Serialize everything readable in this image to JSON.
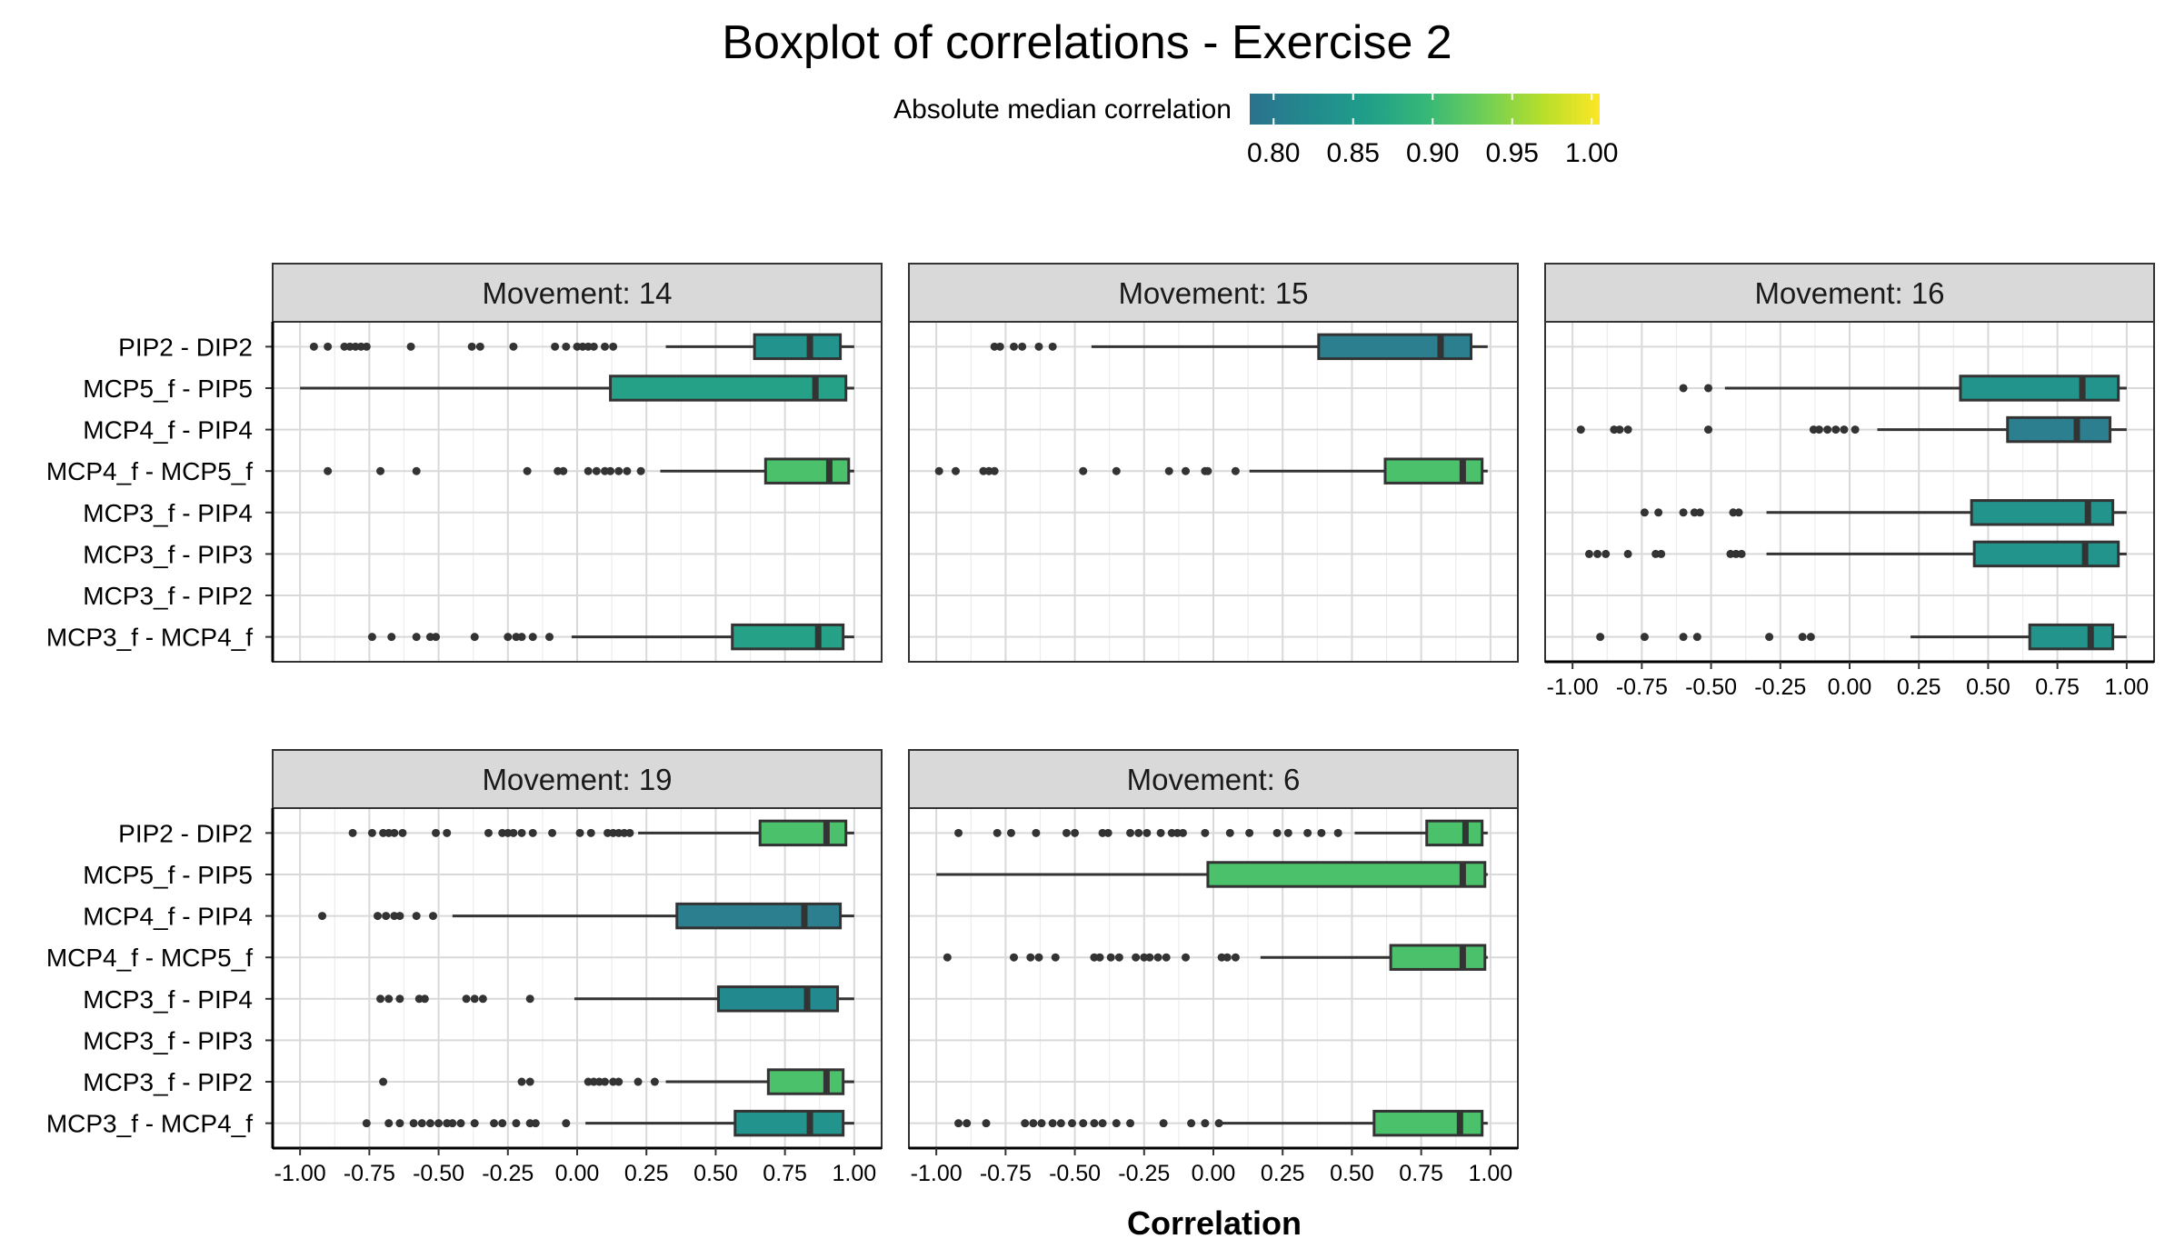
{
  "chart_data": {
    "type": "boxplot",
    "title": "Boxplot of correlations - Exercise 2",
    "xlabel": "Correlation",
    "ylabel": "",
    "xlim": [
      -1.0,
      1.0
    ],
    "x_ticks": [
      "-1.00",
      "-0.75",
      "-0.50",
      "-0.25",
      "0.00",
      "0.25",
      "0.50",
      "0.75",
      "1.00"
    ],
    "x_tick_values": [
      -1.0,
      -0.75,
      -0.5,
      -0.25,
      0.0,
      0.25,
      0.5,
      0.75,
      1.0
    ],
    "categories": [
      "PIP2 - DIP2",
      "MCP5_f - PIP5",
      "MCP4_f - PIP4",
      "MCP4_f - MCP5_f",
      "MCP3_f - PIP4",
      "MCP3_f - PIP3",
      "MCP3_f - PIP2",
      "MCP3_f - MCP4_f"
    ],
    "legend": {
      "title": "Absolute median correlation",
      "ticks": [
        "0.80",
        "0.85",
        "0.90",
        "0.95",
        "1.00"
      ],
      "tick_values": [
        0.8,
        0.85,
        0.9,
        0.95,
        1.0
      ],
      "range": [
        0.785,
        1.005
      ],
      "colors": [
        "#2b718e",
        "#23898e",
        "#1f9e89",
        "#35b779",
        "#6ece58",
        "#b5de2b",
        "#fde725"
      ]
    },
    "panels": [
      {
        "label": "Movement: 14",
        "boxes": [
          {
            "category": "PIP2 - DIP2",
            "whisker_low": 0.32,
            "q1": 0.64,
            "median": 0.84,
            "q3": 0.95,
            "whisker_high": 1.0,
            "color": "#22938d",
            "outliers": [
              -0.95,
              -0.9,
              -0.84,
              -0.82,
              -0.8,
              -0.78,
              -0.76,
              -0.6,
              -0.38,
              -0.35,
              -0.23,
              -0.08,
              -0.04,
              0.0,
              0.02,
              0.04,
              0.06,
              0.1,
              0.13
            ]
          },
          {
            "category": "MCP5_f - PIP5",
            "whisker_low": -1.0,
            "q1": 0.12,
            "median": 0.86,
            "q3": 0.97,
            "whisker_high": 1.0,
            "color": "#25a188",
            "outliers": []
          },
          {
            "category": "MCP4_f - MCP5_f",
            "whisker_low": 0.3,
            "q1": 0.68,
            "median": 0.91,
            "q3": 0.98,
            "whisker_high": 1.0,
            "color": "#4bc16b",
            "outliers": [
              -0.9,
              -0.71,
              -0.58,
              -0.18,
              -0.07,
              -0.05,
              0.04,
              0.07,
              0.1,
              0.12,
              0.15,
              0.18,
              0.23
            ]
          },
          {
            "category": "MCP3_f - MCP4_f",
            "whisker_low": -0.02,
            "q1": 0.56,
            "median": 0.87,
            "q3": 0.96,
            "whisker_high": 1.0,
            "color": "#25a188",
            "outliers": [
              -0.74,
              -0.67,
              -0.58,
              -0.53,
              -0.51,
              -0.37,
              -0.25,
              -0.22,
              -0.2,
              -0.16,
              -0.1
            ]
          }
        ]
      },
      {
        "label": "Movement: 15",
        "boxes": [
          {
            "category": "PIP2 - DIP2",
            "whisker_low": -0.44,
            "q1": 0.38,
            "median": 0.82,
            "q3": 0.93,
            "whisker_high": 0.99,
            "color": "#2b7f8e",
            "outliers": [
              -0.79,
              -0.77,
              -0.72,
              -0.69,
              -0.63,
              -0.58
            ]
          },
          {
            "category": "MCP4_f - MCP5_f",
            "whisker_low": 0.13,
            "q1": 0.62,
            "median": 0.9,
            "q3": 0.97,
            "whisker_high": 0.99,
            "color": "#4bc16b",
            "outliers": [
              -0.99,
              -0.93,
              -0.83,
              -0.81,
              -0.79,
              -0.47,
              -0.35,
              -0.16,
              -0.1,
              -0.03,
              -0.02,
              0.08
            ]
          }
        ]
      },
      {
        "label": "Movement: 16",
        "boxes": [
          {
            "category": "MCP5_f - PIP5",
            "whisker_low": -0.45,
            "q1": 0.4,
            "median": 0.84,
            "q3": 0.97,
            "whisker_high": 1.0,
            "color": "#22948c",
            "outliers": [
              -0.6,
              -0.51
            ]
          },
          {
            "category": "MCP4_f - PIP4",
            "whisker_low": 0.1,
            "q1": 0.57,
            "median": 0.82,
            "q3": 0.94,
            "whisker_high": 1.0,
            "color": "#2b7f8e",
            "outliers": [
              -0.97,
              -0.85,
              -0.83,
              -0.8,
              -0.51,
              -0.13,
              -0.11,
              -0.08,
              -0.05,
              -0.02,
              0.02
            ]
          },
          {
            "category": "MCP3_f - PIP4",
            "whisker_low": -0.3,
            "q1": 0.44,
            "median": 0.86,
            "q3": 0.95,
            "whisker_high": 1.0,
            "color": "#22948c",
            "outliers": [
              -0.74,
              -0.69,
              -0.6,
              -0.56,
              -0.54,
              -0.42,
              -0.4
            ]
          },
          {
            "category": "MCP3_f - PIP3",
            "whisker_low": -0.3,
            "q1": 0.45,
            "median": 0.85,
            "q3": 0.97,
            "whisker_high": 1.0,
            "color": "#22948c",
            "outliers": [
              -0.94,
              -0.91,
              -0.88,
              -0.8,
              -0.7,
              -0.68,
              -0.43,
              -0.41,
              -0.39
            ]
          },
          {
            "category": "MCP3_f - MCP4_f",
            "whisker_low": 0.22,
            "q1": 0.65,
            "median": 0.87,
            "q3": 0.95,
            "whisker_high": 1.0,
            "color": "#22948c",
            "outliers": [
              -0.9,
              -0.74,
              -0.6,
              -0.55,
              -0.29,
              -0.17,
              -0.14
            ]
          }
        ]
      },
      {
        "label": "Movement: 19",
        "boxes": [
          {
            "category": "PIP2 - DIP2",
            "whisker_low": 0.22,
            "q1": 0.66,
            "median": 0.9,
            "q3": 0.97,
            "whisker_high": 1.0,
            "color": "#4bc16b",
            "outliers": [
              -0.81,
              -0.74,
              -0.7,
              -0.68,
              -0.66,
              -0.63,
              -0.51,
              -0.47,
              -0.32,
              -0.27,
              -0.25,
              -0.23,
              -0.2,
              -0.16,
              -0.09,
              0.01,
              0.05,
              0.11,
              0.13,
              0.15,
              0.17,
              0.19
            ]
          },
          {
            "category": "MCP4_f - PIP4",
            "whisker_low": -0.45,
            "q1": 0.36,
            "median": 0.82,
            "q3": 0.95,
            "whisker_high": 1.0,
            "color": "#2b7f8e",
            "outliers": [
              -0.92,
              -0.72,
              -0.69,
              -0.66,
              -0.64,
              -0.58,
              -0.52
            ]
          },
          {
            "category": "MCP3_f - PIP4",
            "whisker_low": -0.01,
            "q1": 0.51,
            "median": 0.83,
            "q3": 0.94,
            "whisker_high": 1.0,
            "color": "#22898e",
            "outliers": [
              -0.71,
              -0.68,
              -0.64,
              -0.57,
              -0.55,
              -0.4,
              -0.37,
              -0.34,
              -0.17
            ]
          },
          {
            "category": "MCP3_f - PIP2",
            "whisker_low": 0.32,
            "q1": 0.69,
            "median": 0.9,
            "q3": 0.96,
            "whisker_high": 1.0,
            "color": "#4bc16b",
            "outliers": [
              -0.7,
              -0.2,
              -0.17,
              0.04,
              0.06,
              0.08,
              0.1,
              0.13,
              0.15,
              0.22,
              0.28
            ]
          },
          {
            "category": "MCP3_f - MCP4_f",
            "whisker_low": 0.03,
            "q1": 0.57,
            "median": 0.84,
            "q3": 0.96,
            "whisker_high": 1.0,
            "color": "#22938d",
            "outliers": [
              -0.76,
              -0.68,
              -0.64,
              -0.59,
              -0.56,
              -0.53,
              -0.5,
              -0.47,
              -0.45,
              -0.42,
              -0.37,
              -0.3,
              -0.27,
              -0.22,
              -0.17,
              -0.15,
              -0.04
            ]
          }
        ]
      },
      {
        "label": "Movement: 6",
        "boxes": [
          {
            "category": "PIP2 - DIP2",
            "whisker_low": 0.51,
            "q1": 0.77,
            "median": 0.91,
            "q3": 0.97,
            "whisker_high": 0.99,
            "color": "#4bc16b",
            "outliers": [
              -0.92,
              -0.78,
              -0.73,
              -0.64,
              -0.53,
              -0.5,
              -0.4,
              -0.38,
              -0.3,
              -0.27,
              -0.24,
              -0.19,
              -0.15,
              -0.13,
              -0.11,
              -0.03,
              0.06,
              0.13,
              0.23,
              0.27,
              0.34,
              0.39,
              0.45
            ]
          },
          {
            "category": "MCP5_f - PIP5",
            "whisker_low": -1.0,
            "q1": -0.02,
            "median": 0.9,
            "q3": 0.98,
            "whisker_high": 0.99,
            "color": "#4bc16b",
            "outliers": []
          },
          {
            "category": "MCP4_f - MCP5_f",
            "whisker_low": 0.17,
            "q1": 0.64,
            "median": 0.9,
            "q3": 0.98,
            "whisker_high": 0.99,
            "color": "#4bc16b",
            "outliers": [
              -0.96,
              -0.72,
              -0.66,
              -0.63,
              -0.57,
              -0.43,
              -0.41,
              -0.37,
              -0.34,
              -0.28,
              -0.25,
              -0.23,
              -0.2,
              -0.17,
              -0.1,
              0.03,
              0.05,
              0.08
            ]
          },
          {
            "category": "MCP3_f - MCP4_f",
            "whisker_low": 0.03,
            "q1": 0.58,
            "median": 0.89,
            "q3": 0.97,
            "whisker_high": 0.99,
            "color": "#4bc16b",
            "outliers": [
              -0.92,
              -0.89,
              -0.82,
              -0.68,
              -0.65,
              -0.62,
              -0.58,
              -0.55,
              -0.51,
              -0.47,
              -0.43,
              -0.4,
              -0.35,
              -0.3,
              -0.18,
              -0.08,
              -0.03,
              0.02
            ]
          }
        ]
      }
    ]
  }
}
